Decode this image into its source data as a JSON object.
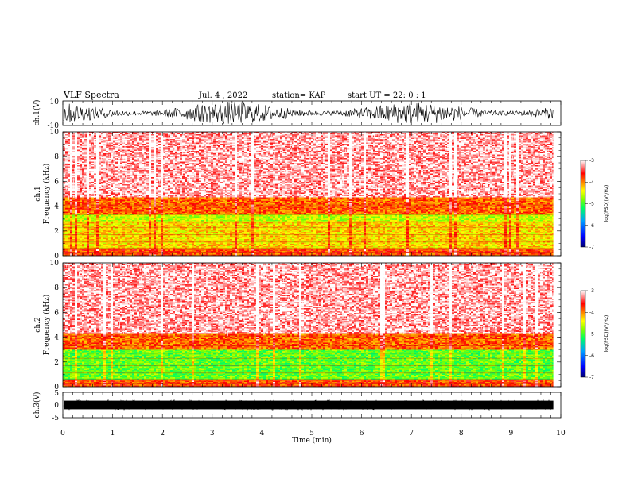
{
  "header": {
    "title": "VLF Spectra",
    "date": "Jul. 4 , 2022",
    "station": "station= KAP",
    "start": "start UT = 22: 0 : 1"
  },
  "colors": {
    "cmap": [
      "#000090",
      "#0000ff",
      "#00a0ff",
      "#00ffb0",
      "#00ff00",
      "#ffff00",
      "#ff8000",
      "#ff0000",
      "#ffffff"
    ],
    "waveform": "#000000"
  },
  "chart_data": [
    {
      "type": "line",
      "name": "ch1-waveform",
      "ylabel": "ch.1(V)",
      "ylim": [
        -10,
        10
      ],
      "yticks": [
        "10",
        "-10"
      ],
      "x_range_min": [
        0,
        9.85
      ],
      "description_values": "dense noise oscillation, amplitude approximately +/-10 V"
    },
    {
      "type": "heatmap",
      "name": "ch1-spectrogram",
      "ylabel": "ch.1 Frequency (kHz)",
      "ylim": [
        0,
        10
      ],
      "yticks": [
        "0",
        "2",
        "4",
        "6",
        "8",
        "10"
      ],
      "x_range_min": [
        0,
        9.85
      ],
      "colorbar": {
        "label": "log(PSD)(V²/Hz)",
        "range": [
          -7,
          -3
        ],
        "ticks": [
          "-3",
          "-4",
          "-5",
          "-6",
          "-7"
        ]
      },
      "bands_kHz": [
        {
          "from": 0,
          "to": 0.6,
          "level": -3.8
        },
        {
          "from": 0.6,
          "to": 2.8,
          "level": -4.3
        },
        {
          "from": 2.8,
          "to": 3.4,
          "level": -4.6
        },
        {
          "from": 3.4,
          "to": 4.8,
          "level": -3.9
        },
        {
          "from": 4.8,
          "to": 10,
          "level": -3.2
        }
      ]
    },
    {
      "type": "heatmap",
      "name": "ch2-spectrogram",
      "ylabel": "ch.2 Frequency (kHz)",
      "ylim": [
        0,
        10
      ],
      "yticks": [
        "0",
        "2",
        "4",
        "6",
        "8",
        "10"
      ],
      "x_range_min": [
        0,
        9.85
      ],
      "colorbar": {
        "label": "log(PSD)(V²/Hz)",
        "range": [
          -7,
          -3
        ],
        "ticks": [
          "-3",
          "-4",
          "-5",
          "-6",
          "-7"
        ]
      },
      "bands_kHz": [
        {
          "from": 0,
          "to": 0.6,
          "level": -3.8
        },
        {
          "from": 0.6,
          "to": 3.0,
          "level": -4.9
        },
        {
          "from": 3.0,
          "to": 4.4,
          "level": -3.9
        },
        {
          "from": 4.4,
          "to": 10,
          "level": -3.2
        }
      ]
    },
    {
      "type": "line",
      "name": "ch3-waveform",
      "ylabel": "ch.3(V)",
      "xlabel": "Time (min)",
      "ylim": [
        -5,
        5
      ],
      "yticks": [
        "5",
        "0",
        "-5"
      ],
      "xlim": [
        0,
        10
      ],
      "xticks": [
        "0",
        "1",
        "2",
        "3",
        "4",
        "5",
        "6",
        "7",
        "8",
        "9",
        "10"
      ],
      "x_range_min": [
        0,
        9.85
      ],
      "description_values": "dense oscillation band, approximately -2 to 2 V"
    }
  ]
}
